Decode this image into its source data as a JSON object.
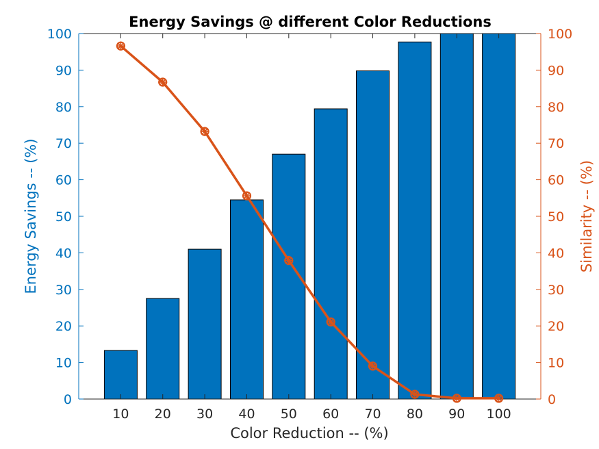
{
  "chart_data": {
    "type": "bar",
    "title": "Energy Savings @ different Color Reductions",
    "xlabel": "Color Reduction -- (%)",
    "ylabel_left": "Energy Savings -- (%)",
    "ylabel_right": "Similarity -- (%)",
    "categories": [
      "10",
      "20",
      "30",
      "40",
      "50",
      "60",
      "70",
      "80",
      "90",
      "100"
    ],
    "x_values": [
      10,
      20,
      30,
      40,
      50,
      60,
      70,
      80,
      90,
      100
    ],
    "xlim": [
      0,
      110
    ],
    "ylim_left": [
      0,
      100
    ],
    "ylim_right": [
      0,
      100
    ],
    "yticks": [
      0,
      10,
      20,
      30,
      40,
      50,
      60,
      70,
      80,
      90,
      100
    ],
    "grid": false,
    "series": [
      {
        "type": "bar",
        "axis": "left",
        "color": "#0072bd",
        "values": [
          13.3,
          27.5,
          41.0,
          54.5,
          67.0,
          79.4,
          89.8,
          97.7,
          100,
          100
        ]
      },
      {
        "type": "line",
        "axis": "right",
        "color": "#d95319",
        "marker": "circle-star",
        "values": [
          96.6,
          86.7,
          73.2,
          55.6,
          37.9,
          21.1,
          9.0,
          1.3,
          0.2,
          0.2
        ]
      }
    ],
    "colors": {
      "left_axis": "#0072bd",
      "right_axis": "#d95319",
      "bar_fill": "#0072bd",
      "line": "#d95319"
    }
  }
}
